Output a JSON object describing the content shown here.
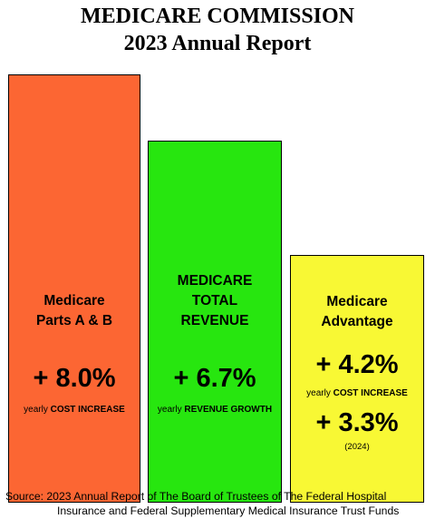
{
  "title": {
    "line1": "MEDICARE COMMISSION",
    "line2": "2023 Annual Report"
  },
  "colors": {
    "bar_a": "#fc6633",
    "bar_b": "#27e60f",
    "bar_c": "#f8f834"
  },
  "chart_data": {
    "type": "bar",
    "categories": [
      "Medicare Parts A & B",
      "MEDICARE TOTAL REVENUE",
      "Medicare Advantage"
    ],
    "values": [
      8.0,
      6.7,
      4.2
    ],
    "ylim": [
      0,
      9
    ],
    "bars": [
      {
        "name_lines": [
          "Medicare",
          "Parts A & B"
        ],
        "value_label": "+ 8.0%",
        "sub_prefix": "yearly",
        "sub_bold": "COST INCREASE"
      },
      {
        "name_lines": [
          "MEDICARE",
          "TOTAL",
          "REVENUE"
        ],
        "value_label": "+ 6.7%",
        "sub_prefix": "yearly",
        "sub_bold": "REVENUE GROWTH"
      },
      {
        "name_lines": [
          "Medicare",
          "Advantage"
        ],
        "value_label": "+ 4.2%",
        "sub_prefix": "yearly",
        "sub_bold": "COST INCREASE",
        "second_value": 3.3,
        "second_label": "+ 3.3%",
        "second_note": "(2024)"
      }
    ]
  },
  "source": {
    "line1": "Source:   2023 Annual Report of The Board of Trustees of The Federal Hospital",
    "line2": "Insurance and Federal Supplementary Medical Insurance Trust Funds"
  }
}
